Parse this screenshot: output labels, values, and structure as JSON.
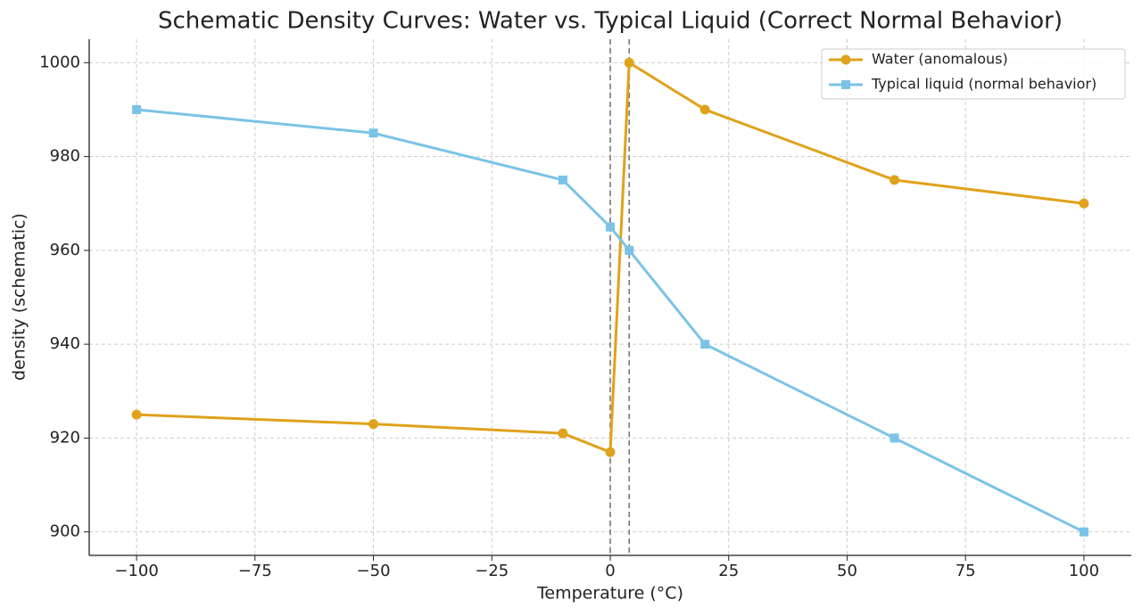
{
  "chart_data": {
    "type": "line",
    "title": "Schematic Density Curves: Water vs. Typical Liquid (Correct Normal Behavior)",
    "xlabel": "Temperature (°C)",
    "ylabel": "density (schematic)",
    "x": [
      -100,
      -50,
      -10,
      0,
      4,
      20,
      60,
      100
    ],
    "series": [
      {
        "name": "Water (anomalous)",
        "color": "#e0a21b",
        "marker": "circle",
        "values": [
          925,
          923,
          921,
          917,
          1000,
          990,
          975,
          970
        ]
      },
      {
        "name": "Typical liquid (normal behavior)",
        "color": "#7bc3e6",
        "marker": "square",
        "values": [
          990,
          985,
          975,
          965,
          960,
          940,
          920,
          900
        ]
      }
    ],
    "vlines": [
      0,
      4
    ],
    "xlim": [
      -110,
      110
    ],
    "xticks": [
      {
        "value": -100,
        "label": "−100"
      },
      {
        "value": -75,
        "label": "−75"
      },
      {
        "value": -50,
        "label": "−50"
      },
      {
        "value": -25,
        "label": "−25"
      },
      0,
      25,
      50,
      75,
      100
    ],
    "ylim": [
      895,
      1005
    ],
    "yticks": [
      900,
      920,
      940,
      960,
      980,
      1000
    ],
    "grid": true,
    "legend": "upper right"
  }
}
